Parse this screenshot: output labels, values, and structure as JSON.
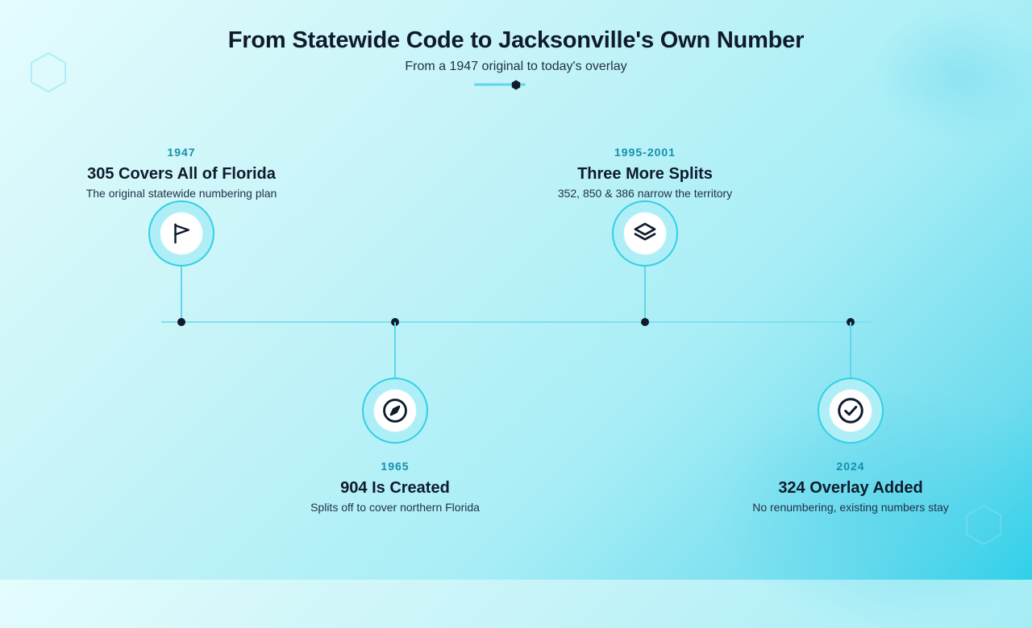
{
  "header": {
    "title": "From Statewide Code to Jacksonville's Own Number",
    "subtitle": "From a 1947 original to today's overlay"
  },
  "colors": {
    "accent": "#34cfe6",
    "dark": "#0f1b2d",
    "year": "#1590ad",
    "line": "#7fe0ef"
  },
  "timeline": {
    "events": [
      {
        "year": "1947",
        "title": "305 Covers All of Florida",
        "description": "The original statewide numbering plan",
        "icon": "flag-icon",
        "position": "above"
      },
      {
        "year": "1965",
        "title": "904 Is Created",
        "description": "Splits off to cover northern Florida",
        "icon": "compass-icon",
        "position": "below"
      },
      {
        "year": "1995-2001",
        "title": "Three More Splits",
        "description": "352, 850 & 386 narrow the territory",
        "icon": "layers-icon",
        "position": "above"
      },
      {
        "year": "2024",
        "title": "324 Overlay Added",
        "description": "No renumbering, existing numbers stay",
        "icon": "check-circle-icon",
        "position": "below"
      }
    ]
  }
}
